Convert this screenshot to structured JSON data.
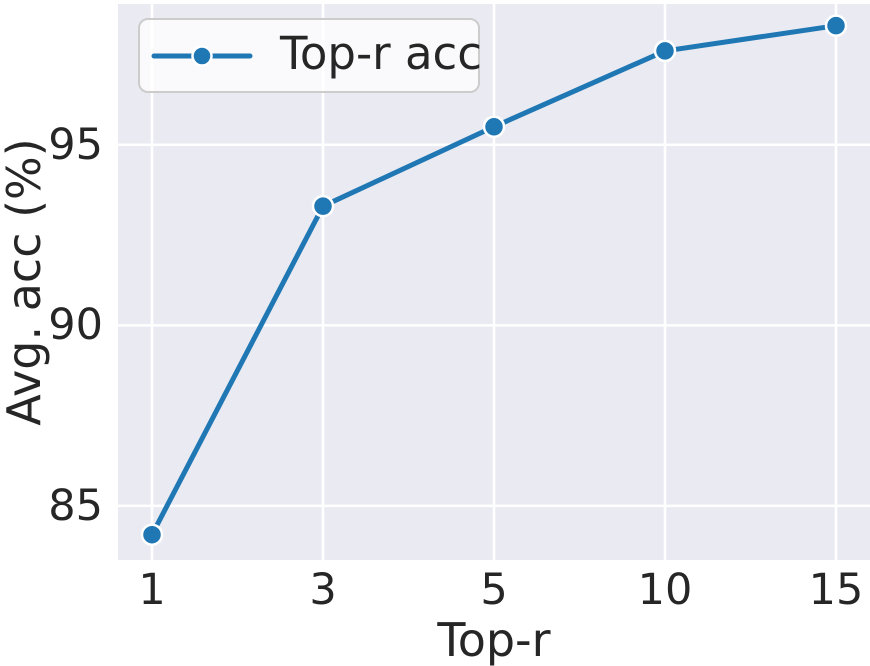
{
  "chart_data": {
    "type": "line",
    "title": "",
    "xlabel": "Top-r",
    "ylabel": "Avg. acc (%)",
    "categories": [
      "1",
      "3",
      "5",
      "10",
      "15"
    ],
    "series": [
      {
        "name": "Top-r acc",
        "values": [
          84.2,
          93.3,
          95.5,
          97.6,
          98.3
        ]
      }
    ],
    "ytick_labels": [
      "85",
      "90",
      "95"
    ],
    "ytick_values": [
      85,
      90,
      95
    ],
    "ylim": [
      83.5,
      98.9
    ],
    "grid": true,
    "legend": {
      "label": "Top-r acc",
      "position": "upper-left"
    },
    "colors": {
      "line": "#1f77b4",
      "marker_fill": "#1f77b4",
      "marker_edge": "#ffffff",
      "plot_background": "#eaeaf2",
      "gridline": "#ffffff",
      "text": "#262626",
      "legend_border": "#cccccc"
    }
  }
}
